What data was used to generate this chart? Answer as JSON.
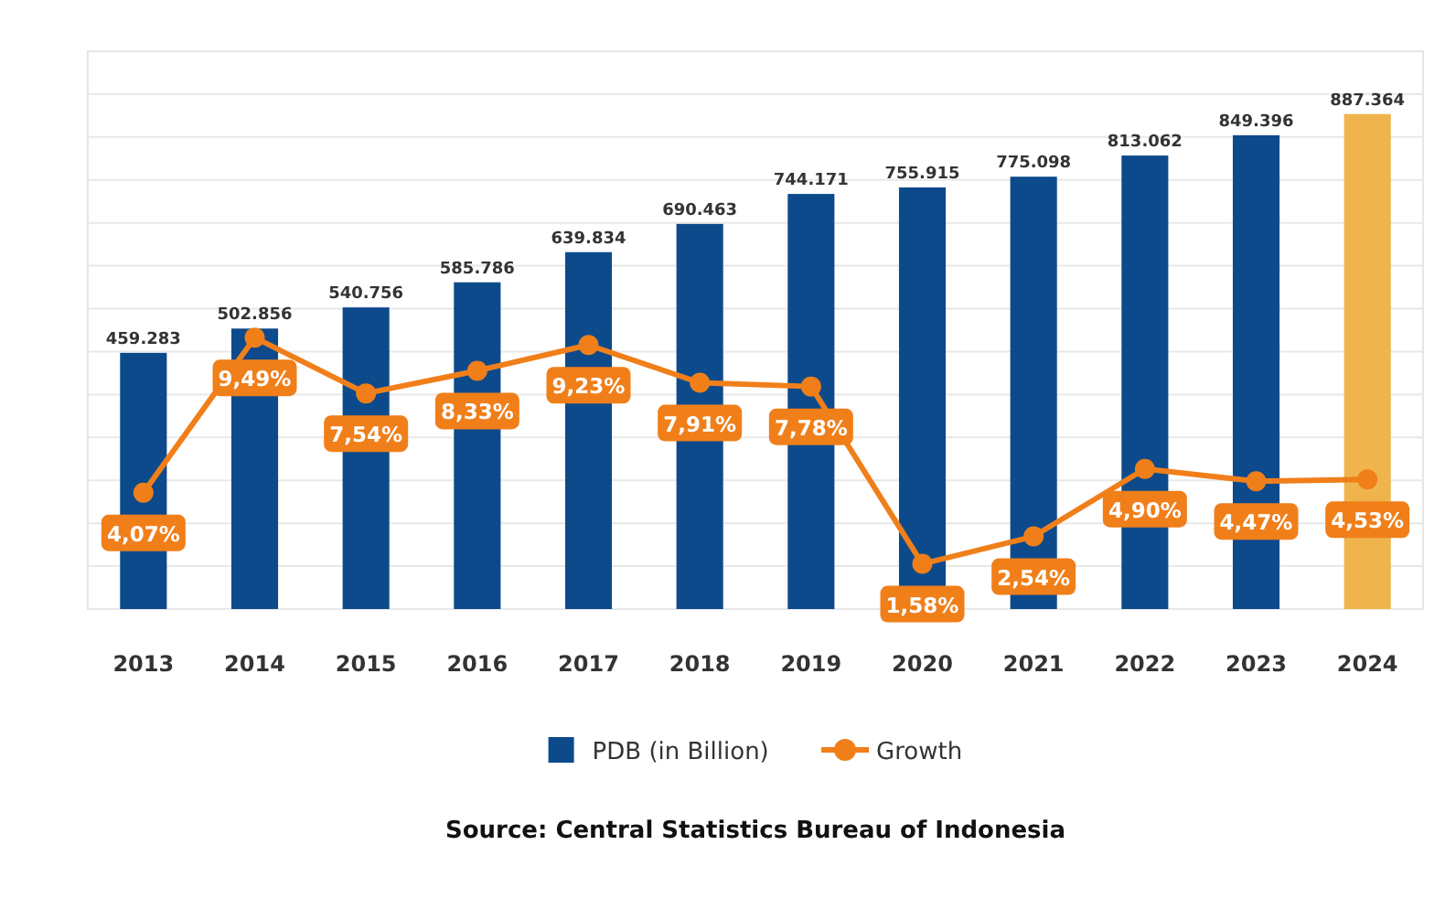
{
  "chart_data": {
    "type": "bar",
    "categories": [
      "2013",
      "2014",
      "2015",
      "2016",
      "2017",
      "2018",
      "2019",
      "2020",
      "2021",
      "2022",
      "2023",
      "2024"
    ],
    "series": [
      {
        "name": "PDB (in Billion)",
        "color": "#0d4a8c",
        "colors": [
          "#0d4a8c",
          "#0d4a8c",
          "#0d4a8c",
          "#0d4a8c",
          "#0d4a8c",
          "#0d4a8c",
          "#0d4a8c",
          "#0d4a8c",
          "#0d4a8c",
          "#0d4a8c",
          "#0d4a8c",
          "#f0b44c"
        ],
        "values": [
          459283,
          502856,
          540756,
          585786,
          639834,
          690463,
          744171,
          755915,
          775098,
          813062,
          849396,
          887364
        ],
        "value_labels": [
          "459.283",
          "502.856",
          "540.756",
          "585.786",
          "639.834",
          "690.463",
          "744.171",
          "755.915",
          "775.098",
          "813.062",
          "849.396",
          "887.364"
        ]
      },
      {
        "name": "Growth",
        "type": "line",
        "axis": "y2",
        "color": "#f07f1a",
        "values": [
          4.07,
          9.49,
          7.54,
          8.33,
          9.23,
          7.91,
          7.78,
          1.58,
          2.54,
          4.9,
          4.47,
          4.53
        ],
        "value_labels": [
          "4,07%",
          "9,49%",
          "7,54%",
          "8,33%",
          "9,23%",
          "7,91%",
          "7,78%",
          "1,58%",
          "2,54%",
          "4,90%",
          "4,47%",
          "4,53%"
        ]
      }
    ],
    "y2lim": [
      0,
      19.5
    ],
    "y2ticks": [
      {
        "value": 0,
        "label": null
      },
      {
        "value": 1.5,
        "label": null
      },
      {
        "value": 3,
        "label": null
      },
      {
        "value": 4.5,
        "label": null
      },
      {
        "value": 6,
        "label": null
      },
      {
        "value": 7.5,
        "label": null
      },
      {
        "value": 9,
        "label": null
      },
      {
        "value": 10.5,
        "label": null
      },
      {
        "value": 12,
        "label": null
      },
      {
        "value": 13.5,
        "label": null
      },
      {
        "value": 15,
        "label": null
      },
      {
        "value": 16.5,
        "label": null
      },
      {
        "value": 18,
        "label": null
      }
    ],
    "tick_labels": "x",
    "grid": true,
    "legend": "bottom",
    "marker": "circle",
    "line_style": "solid",
    "annotations": [
      "Source: Central Statistics Bureau of Indonesia"
    ]
  }
}
